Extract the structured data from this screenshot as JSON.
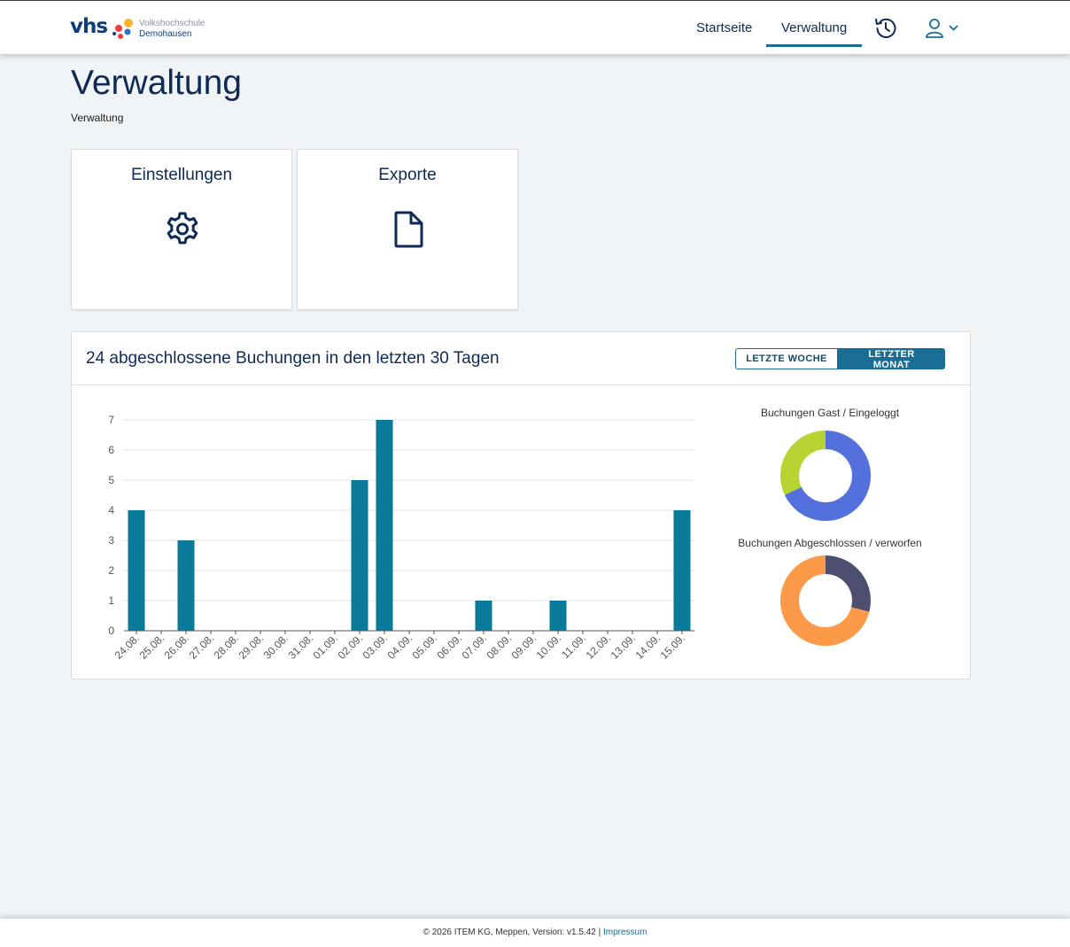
{
  "header": {
    "logo_text": "vhs",
    "logo_line1": "Volkshochschule",
    "logo_line2": "Demohausen",
    "nav": [
      "Startseite",
      "Verwaltung"
    ],
    "active_nav": "Verwaltung",
    "icons": [
      "history-icon",
      "user-icon",
      "chevron-down-icon"
    ]
  },
  "page": {
    "title": "Verwaltung",
    "breadcrumb": "Verwaltung"
  },
  "tiles": [
    {
      "label": "Einstellungen",
      "icon": "gear-icon"
    },
    {
      "label": "Exporte",
      "icon": "file-icon"
    }
  ],
  "stats": {
    "title": "24 abgeschlossene Buchungen in den letzten 30 Tagen",
    "toggle": [
      "LETZTE WOCHE",
      "LETZTER MONAT"
    ],
    "active_toggle": "LETZTER MONAT"
  },
  "chart_data": [
    {
      "type": "bar",
      "categories": [
        "24.08.",
        "25.08.",
        "26.08.",
        "27.08.",
        "28.08.",
        "29.08.",
        "30.08.",
        "31.08.",
        "01.09.",
        "02.09.",
        "03.09.",
        "04.09.",
        "05.09.",
        "06.09.",
        "07.09.",
        "08.09.",
        "09.09.",
        "10.09.",
        "11.09.",
        "12.09.",
        "13.09.",
        "14.09.",
        "15.09."
      ],
      "values": [
        4,
        0,
        3,
        0,
        0,
        0,
        0,
        0,
        0,
        5,
        7,
        0,
        0,
        0,
        1,
        0,
        0,
        1,
        0,
        0,
        0,
        0,
        4
      ],
      "ylim": [
        0,
        7
      ],
      "yticks": [
        0,
        1,
        2,
        3,
        4,
        5,
        6,
        7
      ],
      "grid": true,
      "color": "#0a7a9a"
    },
    {
      "type": "pie",
      "title": "Buchungen Gast / Eingeloggt",
      "slices": [
        {
          "label": "Eingeloggt",
          "value": 68,
          "color": "#5470dc"
        },
        {
          "label": "Gast",
          "value": 32,
          "color": "#b8d433"
        }
      ]
    },
    {
      "type": "pie",
      "title": "Buchungen Abgeschlossen / verworfen",
      "slices": [
        {
          "label": "verworfen",
          "value": 29,
          "color": "#4d4f70"
        },
        {
          "label": "Abgeschlossen",
          "value": 71,
          "color": "#fd9a4a"
        }
      ]
    }
  ],
  "footer": {
    "text": "© 2026 ITEM KG, Meppen, Version: v1.5.42 |",
    "link": "Impressum"
  }
}
